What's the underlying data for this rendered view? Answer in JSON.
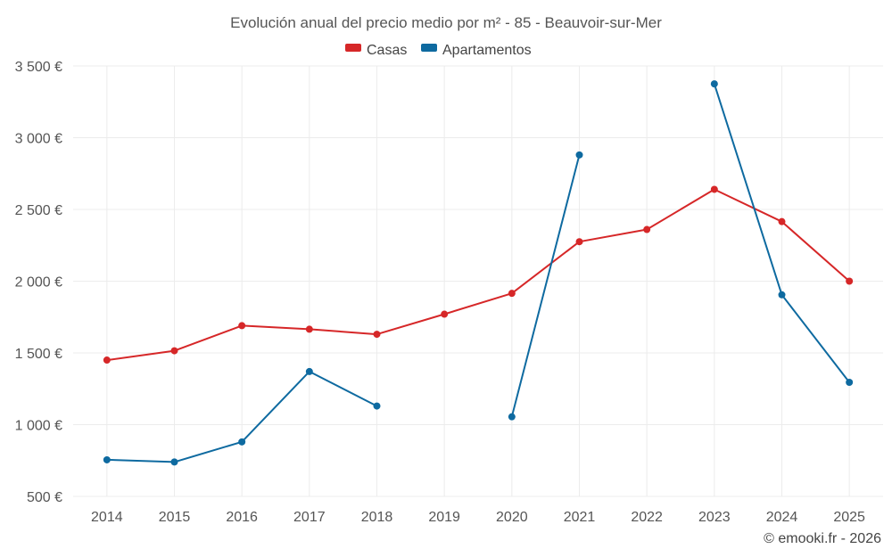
{
  "chart_data": {
    "type": "line",
    "title": "Evolución anual del precio medio por m² - 85 - Beauvoir-sur-Mer",
    "xlabel": "",
    "ylabel": "",
    "categories": [
      "2014",
      "2015",
      "2016",
      "2017",
      "2018",
      "2019",
      "2020",
      "2021",
      "2022",
      "2023",
      "2024",
      "2025"
    ],
    "ylim": [
      500,
      3500
    ],
    "yticks": [
      500,
      1000,
      1500,
      2000,
      2500,
      3000,
      3500
    ],
    "ytick_labels": [
      "500 €",
      "1 000 €",
      "1 500 €",
      "2 000 €",
      "2 500 €",
      "3 000 €",
      "3 500 €"
    ],
    "grid": true,
    "legend_position": "top-center",
    "series": [
      {
        "name": "Casas",
        "color": "#d62728",
        "values": [
          1450,
          1515,
          1690,
          1665,
          1630,
          1770,
          1915,
          2275,
          2360,
          2640,
          2415,
          2000
        ]
      },
      {
        "name": "Apartamentos",
        "color": "#0e6aa0",
        "values": [
          755,
          740,
          880,
          1370,
          1130,
          null,
          1055,
          2880,
          null,
          3375,
          1905,
          1295
        ]
      }
    ]
  },
  "credit": "© emooki.fr - 2026"
}
